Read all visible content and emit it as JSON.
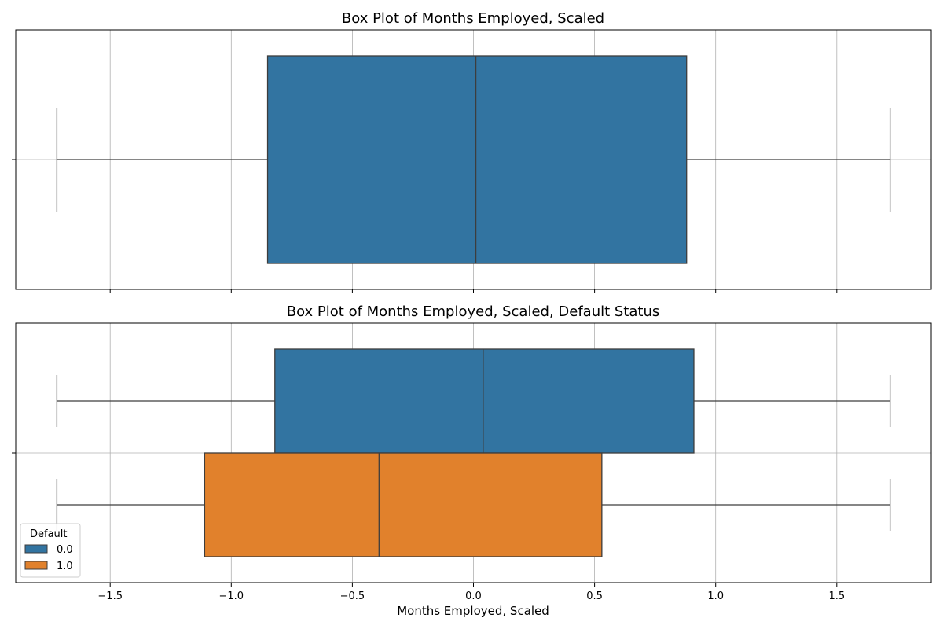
{
  "chart_data": [
    {
      "type": "box",
      "orientation": "horizontal",
      "title": "Box Plot of Months Employed, Scaled",
      "xlabel": "",
      "ylabel": "",
      "xlim": [
        -1.89,
        1.89
      ],
      "xticks": [
        -1.5,
        -1.0,
        -0.5,
        0.0,
        0.5,
        1.0,
        1.5
      ],
      "grid": true,
      "show_tick_labels": false,
      "series": [
        {
          "color": "#3274a1",
          "whisker_low": -1.72,
          "q1": -0.85,
          "median": 0.01,
          "q3": 0.88,
          "whisker_high": 1.72
        }
      ]
    },
    {
      "type": "box",
      "orientation": "horizontal",
      "title": "Box Plot of Months Employed, Scaled, Default Status",
      "xlabel": "Months Employed, Scaled",
      "ylabel": "",
      "xlim": [
        -1.89,
        1.89
      ],
      "xticks": [
        -1.5,
        -1.0,
        -0.5,
        0.0,
        0.5,
        1.0,
        1.5
      ],
      "xtick_labels": [
        "−1.5",
        "−1.0",
        "−0.5",
        "0.0",
        "0.5",
        "1.0",
        "1.5"
      ],
      "grid": true,
      "show_tick_labels": true,
      "legend": {
        "title": "Default",
        "placement": "lower-left",
        "entries": [
          "0.0",
          "1.0"
        ]
      },
      "series": [
        {
          "name": "0.0",
          "color": "#3274a1",
          "whisker_low": -1.72,
          "q1": -0.82,
          "median": 0.04,
          "q3": 0.91,
          "whisker_high": 1.72
        },
        {
          "name": "1.0",
          "color": "#e1812c",
          "whisker_low": -1.72,
          "q1": -1.11,
          "median": -0.39,
          "q3": 0.53,
          "whisker_high": 1.72
        }
      ]
    }
  ]
}
